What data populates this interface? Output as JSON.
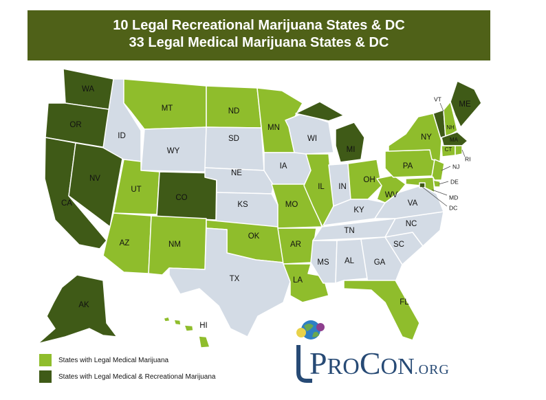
{
  "banner": {
    "line1": "10 Legal Recreational Marijuana States & DC",
    "line2": "33 Legal Medical Marijuana States & DC"
  },
  "colors": {
    "banner": "#4f6118",
    "medical": "#8fbd2c",
    "recreational": "#3f5a17",
    "none": "#d3dbe5",
    "border": "#ffffff"
  },
  "legend": {
    "medical": "States with Legal Medical Marijuana",
    "recreational": "States with Legal Medical & Recreational Marijuana"
  },
  "logo": {
    "p": "P",
    "ro": "RO",
    "c": "C",
    "on": "ON",
    "org": ".ORG",
    "icon": "globe-icon"
  },
  "states": {
    "WA": "WA",
    "OR": "OR",
    "CA": "CA",
    "NV": "NV",
    "ID": "ID",
    "MT": "MT",
    "WY": "WY",
    "UT": "UT",
    "CO": "CO",
    "AZ": "AZ",
    "NM": "NM",
    "ND": "ND",
    "SD": "SD",
    "NE": "NE",
    "KS": "KS",
    "OK": "OK",
    "TX": "TX",
    "MN": "MN",
    "IA": "IA",
    "MO": "MO",
    "AR": "AR",
    "LA": "LA",
    "WI": "WI",
    "IL": "IL",
    "MI": "MI",
    "IN": "IN",
    "OH": "OH",
    "KY": "KY",
    "TN": "TN",
    "MS": "MS",
    "AL": "AL",
    "GA": "GA",
    "FL": "FL",
    "SC": "SC",
    "NC": "NC",
    "VA": "VA",
    "WV": "WV",
    "PA": "PA",
    "NY": "NY",
    "ME": "ME",
    "VT": "VT",
    "NH": "NH",
    "MA": "MA",
    "CT": "CT",
    "RI": "RI",
    "NJ": "NJ",
    "DE": "DE",
    "MD": "MD",
    "DC": "DC",
    "AK": "AK",
    "HI": "HI"
  }
}
